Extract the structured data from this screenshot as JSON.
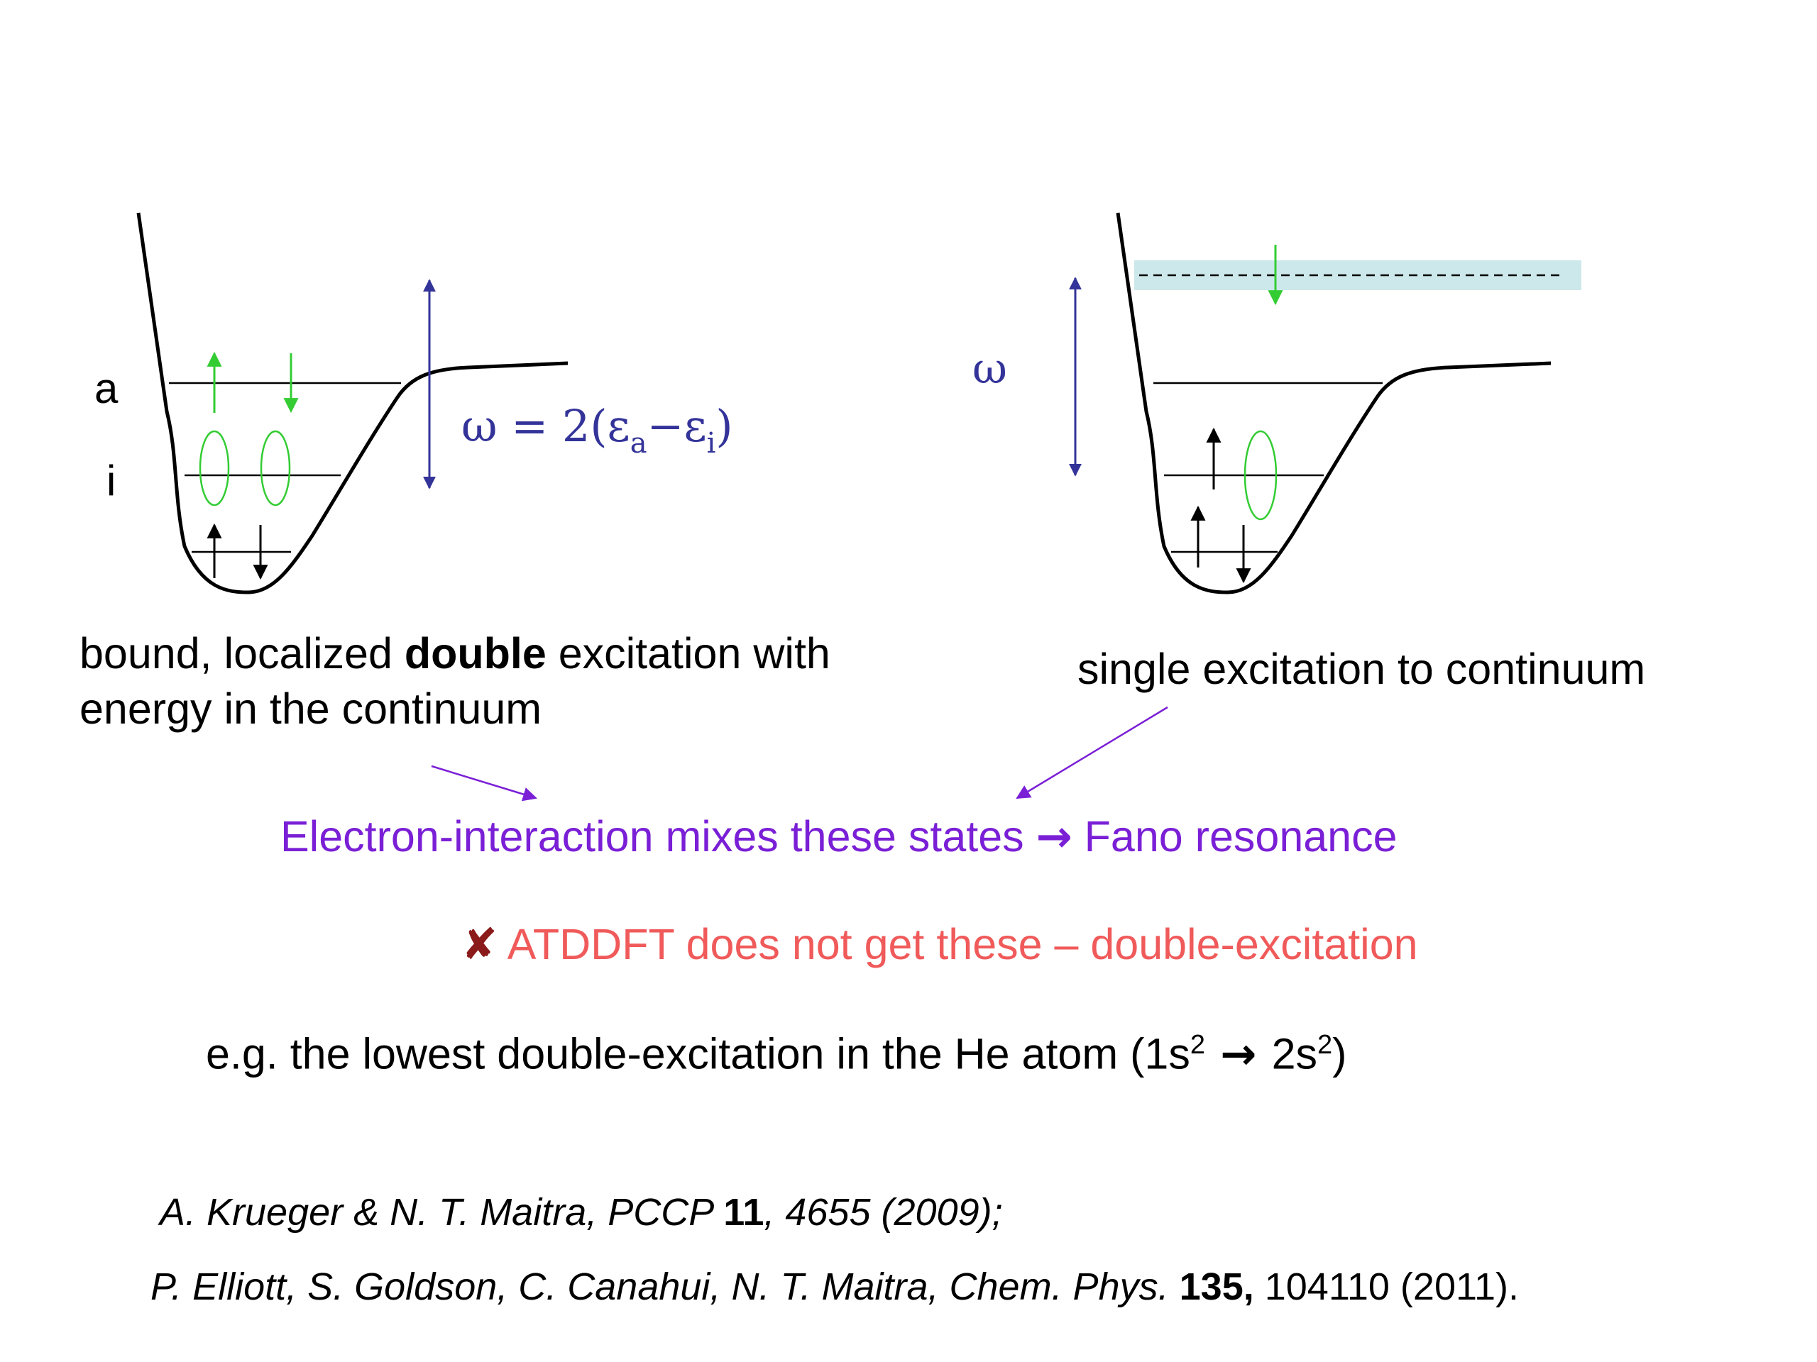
{
  "left_diagram": {
    "level_a_label": "a",
    "level_i_label": "i",
    "omega_text": "ω = 2(ε",
    "omega_sub_a": "a",
    "omega_minus": "−ε",
    "omega_sub_i": "i",
    "omega_close": ")",
    "caption_pre": "bound, localized ",
    "caption_bold": "double",
    "caption_post": " excitation with",
    "caption_line2": "energy in the continuum"
  },
  "right_diagram": {
    "omega_label": "ω",
    "caption": "single excitation to continuum"
  },
  "mix_line": {
    "text_pre": "Electron-interaction mixes these states ",
    "arrow": "→",
    "text_post": " Fano resonance"
  },
  "atddft_line": {
    "mark": "✘",
    "text": " ATDDFT does not get these – double-excitation"
  },
  "example_line": {
    "pre": "e.g. the lowest double-excitation in the He atom (1s",
    "sup1": "2",
    "arrow": " → ",
    "mid": "2s",
    "sup2": "2",
    "close": ")"
  },
  "references": {
    "ref1_pre": "A. Krueger & N. T. Maitra, PCCP ",
    "ref1_bold": "11",
    "ref1_post": ", 4655 (2009);",
    "ref2_pre": "P. Elliott, S. Goldson, C. Canahui, N. T. Maitra, Chem. Phys. ",
    "ref2_bold": "135,",
    "ref2_post": "  104110 (2011)."
  },
  "colors": {
    "arrow_green": "#33cc33",
    "arrow_blue": "#333399",
    "band": "#cce8ea",
    "pointer": "#7a1fd6",
    "red_text": "#f05a5a",
    "x_mark": "#8b1a1a"
  }
}
